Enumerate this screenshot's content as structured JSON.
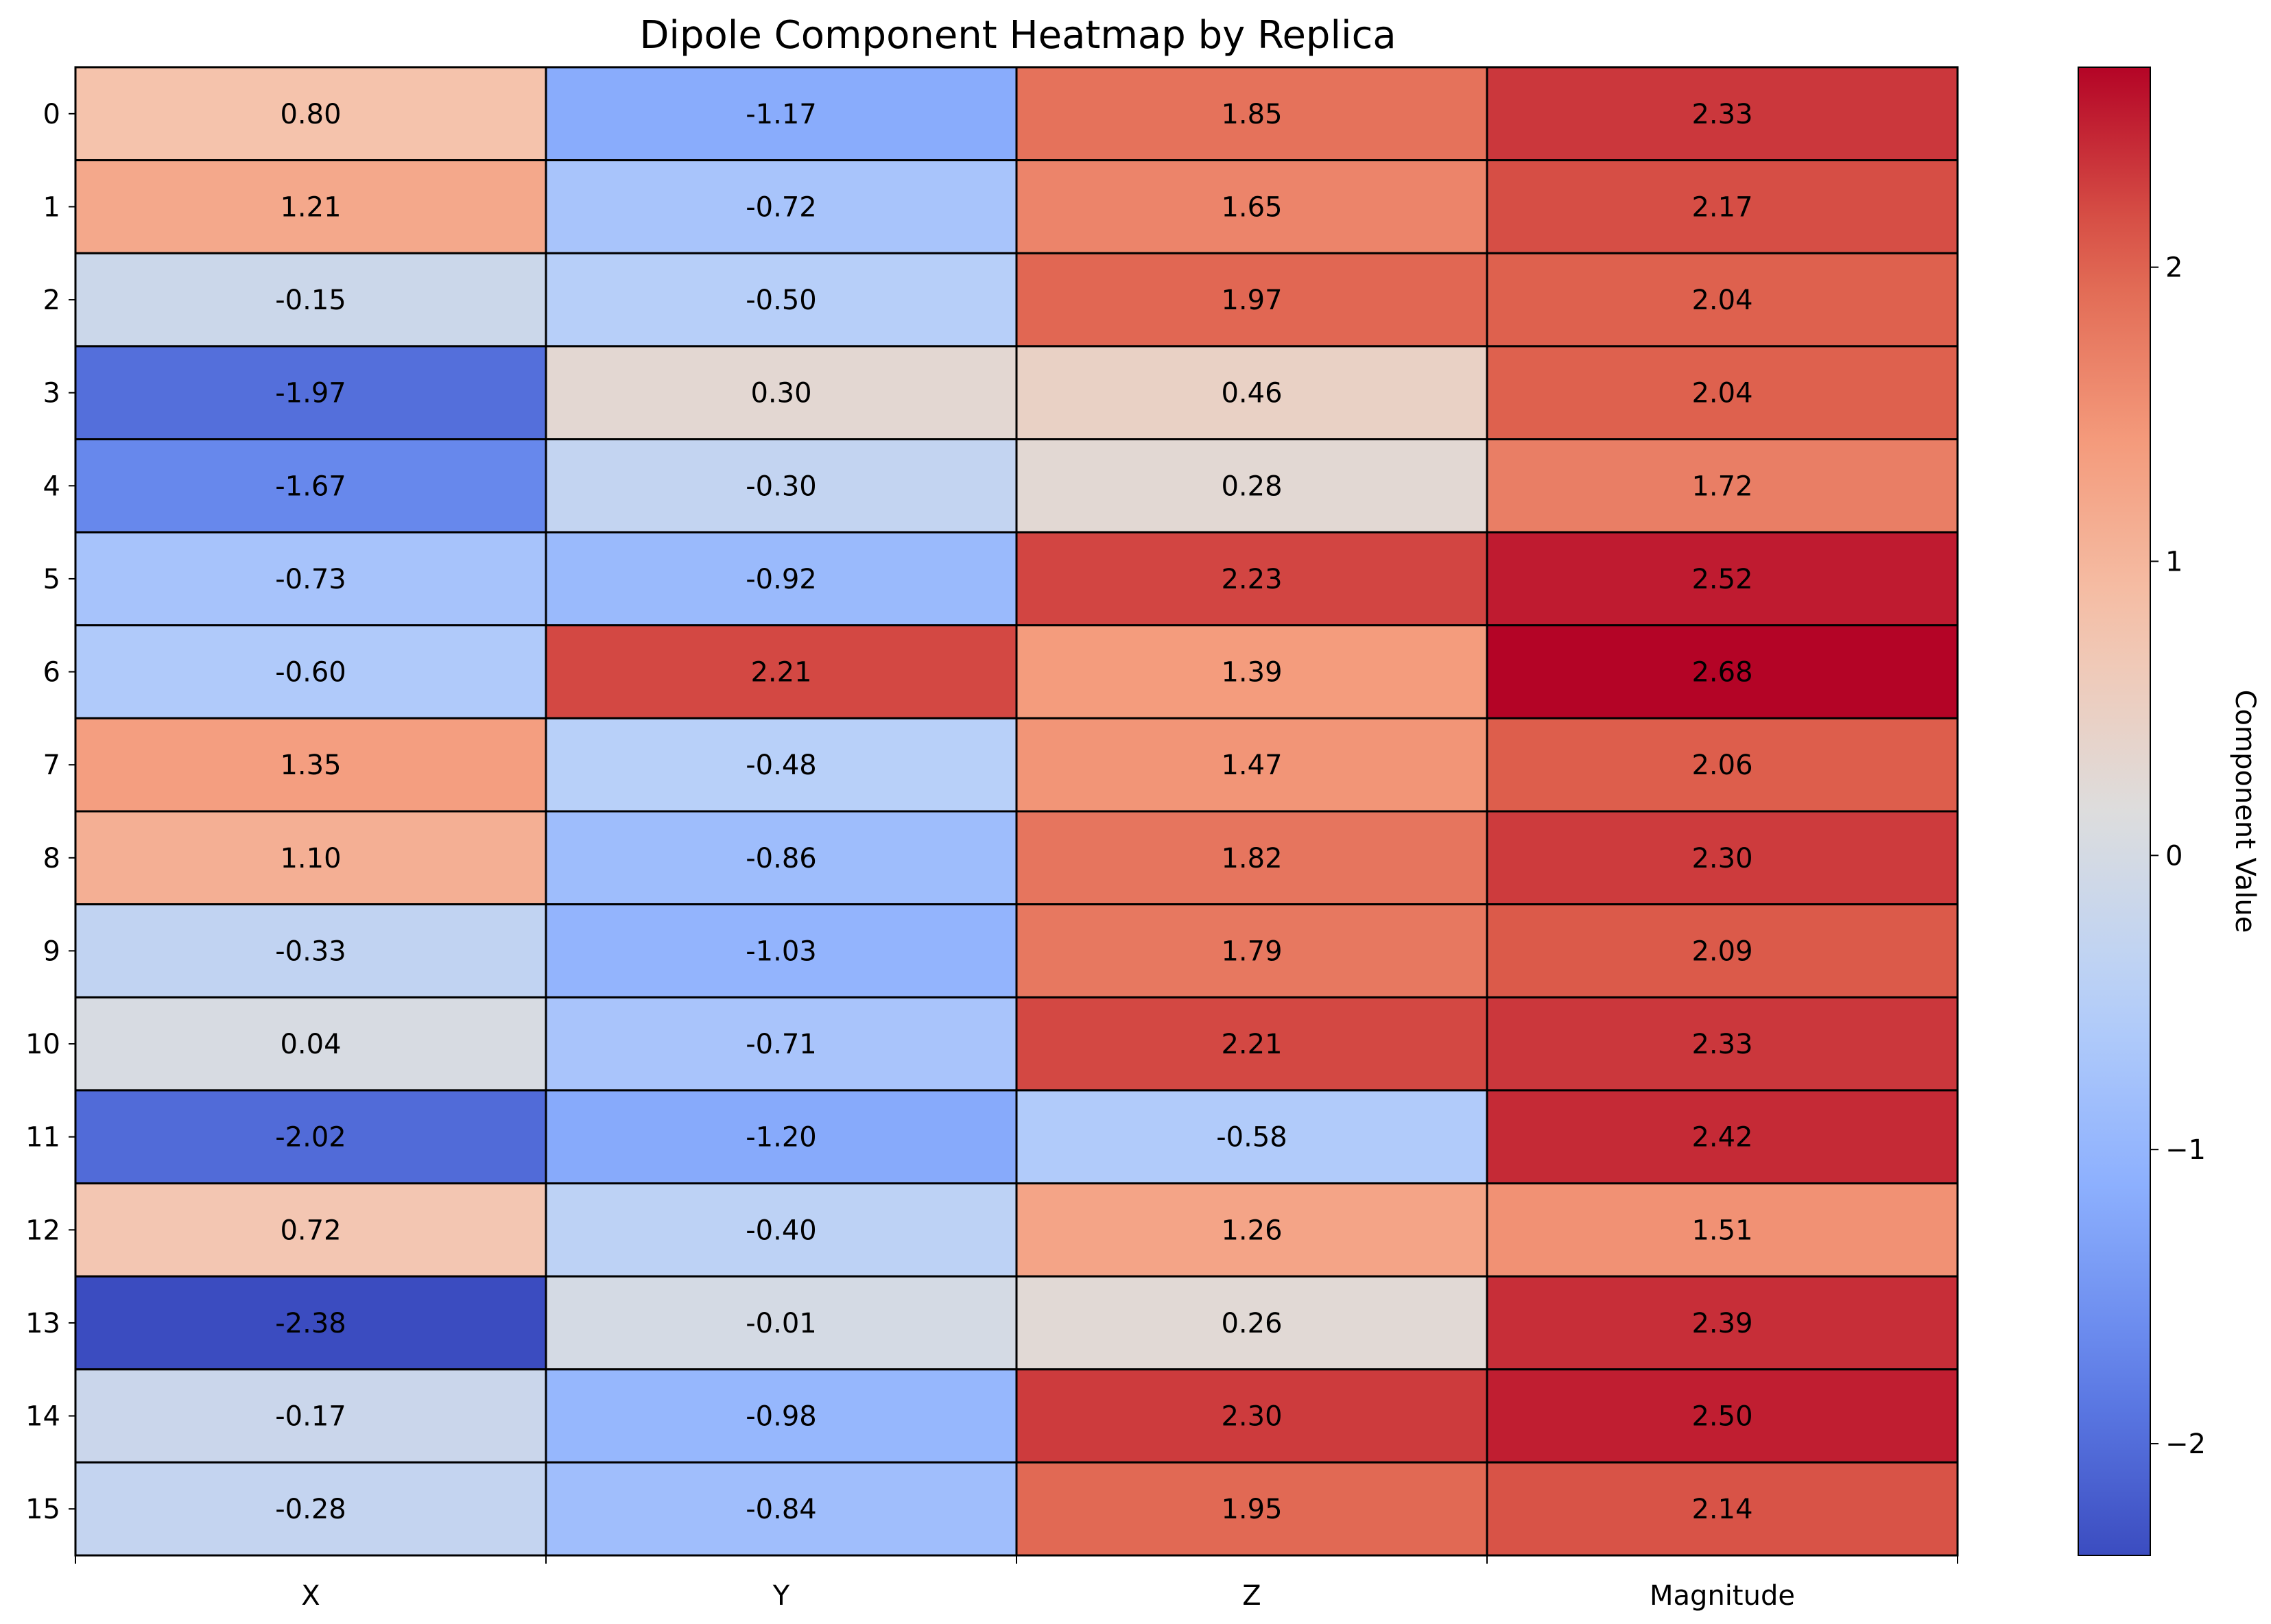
{
  "chart_data": {
    "type": "heatmap",
    "title": "Dipole Component Heatmap by Replica",
    "columns": [
      "X",
      "Y",
      "Z",
      "Magnitude"
    ],
    "rows": [
      "0",
      "1",
      "2",
      "3",
      "4",
      "5",
      "6",
      "7",
      "8",
      "9",
      "10",
      "11",
      "12",
      "13",
      "14",
      "15"
    ],
    "values": [
      [
        0.8,
        -1.17,
        1.85,
        2.33
      ],
      [
        1.21,
        -0.72,
        1.65,
        2.17
      ],
      [
        -0.15,
        -0.5,
        1.97,
        2.04
      ],
      [
        -1.97,
        0.3,
        0.46,
        2.04
      ],
      [
        -1.67,
        -0.3,
        0.28,
        1.72
      ],
      [
        -0.73,
        -0.92,
        2.23,
        2.52
      ],
      [
        -0.6,
        2.21,
        1.39,
        2.68
      ],
      [
        1.35,
        -0.48,
        1.47,
        2.06
      ],
      [
        1.1,
        -0.86,
        1.82,
        2.3
      ],
      [
        -0.33,
        -1.03,
        1.79,
        2.09
      ],
      [
        0.04,
        -0.71,
        2.21,
        2.33
      ],
      [
        -2.02,
        -1.2,
        -0.58,
        2.42
      ],
      [
        0.72,
        -0.4,
        1.26,
        1.51
      ],
      [
        -2.38,
        -0.01,
        0.26,
        2.39
      ],
      [
        -0.17,
        -0.98,
        2.3,
        2.5
      ],
      [
        -0.28,
        -0.84,
        1.95,
        2.14
      ]
    ],
    "colormap": "coolwarm",
    "vmin": -2.38,
    "vmax": 2.68,
    "colorbar": {
      "label": "Component Value",
      "ticks": [
        -2,
        -1,
        0,
        1,
        2
      ],
      "tick_labels": [
        "−2",
        "−1",
        "0",
        "1",
        "2"
      ]
    },
    "cell_border_color": "#000000"
  }
}
